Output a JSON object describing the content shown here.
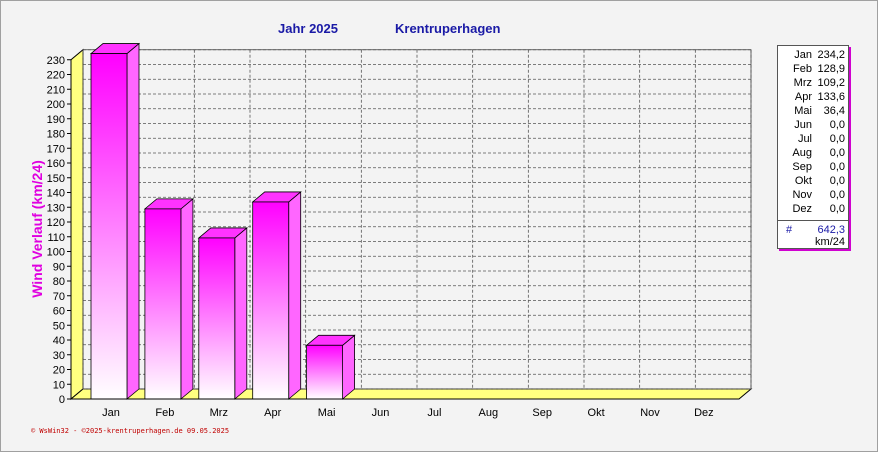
{
  "header": {
    "year_label": "Jahr  2025",
    "station": "Krentruperhagen"
  },
  "footer": {
    "text": "© WsWin32 - ©2025-krentruperhagen.de  09.05.2025"
  },
  "legend": {
    "rows": [
      {
        "month": "Jan",
        "value": "234,2"
      },
      {
        "month": "Feb",
        "value": "128,9"
      },
      {
        "month": "Mrz",
        "value": "109,2"
      },
      {
        "month": "Apr",
        "value": "133,6"
      },
      {
        "month": "Mai",
        "value": "36,4"
      },
      {
        "month": "Jun",
        "value": "0,0"
      },
      {
        "month": "Jul",
        "value": "0,0"
      },
      {
        "month": "Aug",
        "value": "0,0"
      },
      {
        "month": "Sep",
        "value": "0,0"
      },
      {
        "month": "Okt",
        "value": "0,0"
      },
      {
        "month": "Nov",
        "value": "0,0"
      },
      {
        "month": "Dez",
        "value": "0,0"
      }
    ],
    "total_label": "#",
    "total_value": "642,3",
    "unit": "km/24"
  },
  "colors": {
    "bar": "#ff00ff",
    "floor": "#ffff80",
    "title": "#1a1aa6",
    "ylabel": "#e000e0"
  },
  "chart_data": {
    "type": "bar",
    "title": "",
    "ylabel": "Wind Verlauf  (km/24)",
    "xlabel": "",
    "categories": [
      "Jan",
      "Feb",
      "Mrz",
      "Apr",
      "Mai",
      "Jun",
      "Jul",
      "Aug",
      "Sep",
      "Okt",
      "Nov",
      "Dez"
    ],
    "values": [
      234.2,
      128.9,
      109.2,
      133.6,
      36.4,
      0,
      0,
      0,
      0,
      0,
      0,
      0
    ],
    "ylim": [
      0,
      230
    ],
    "ytick_step": 10,
    "grid": true,
    "legend_position": "right"
  }
}
